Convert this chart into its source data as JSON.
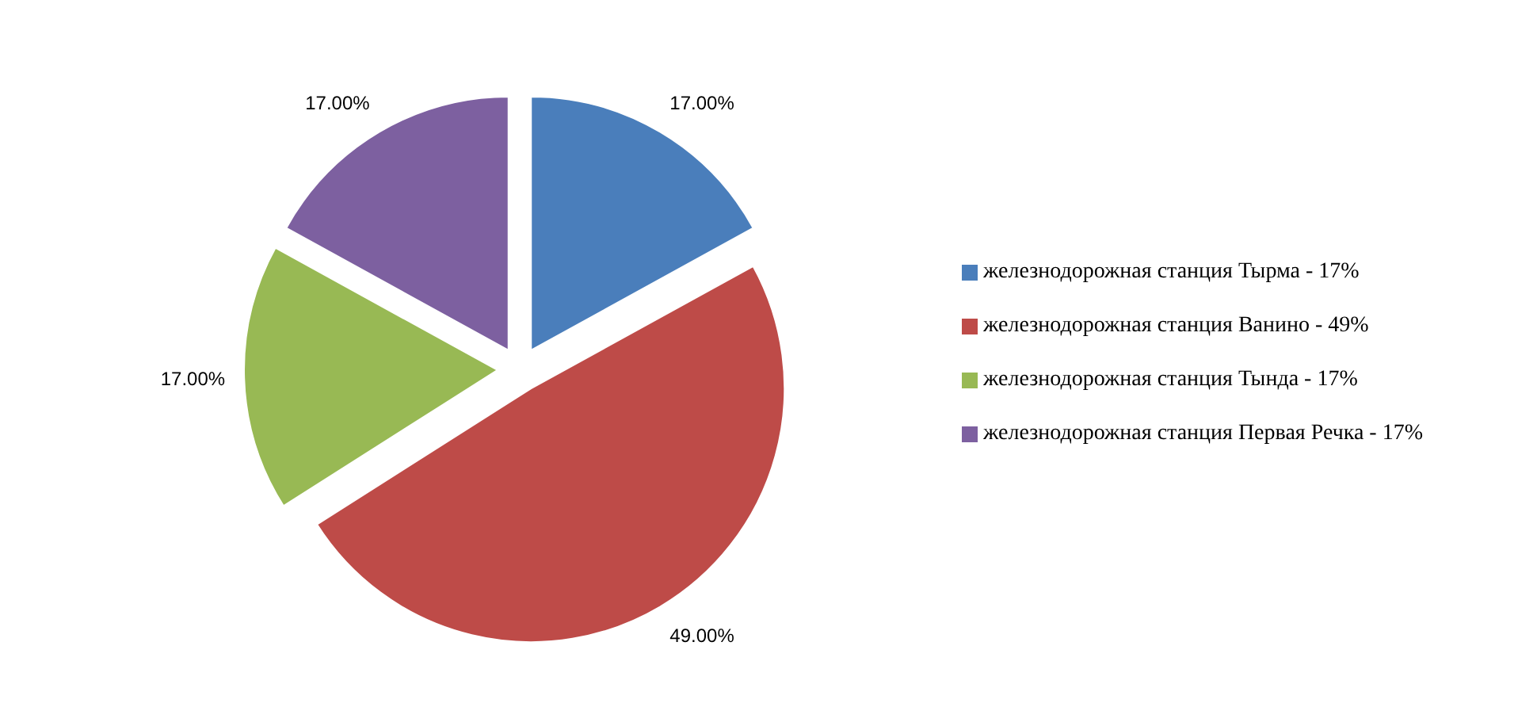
{
  "chart_data": {
    "type": "pie",
    "categories": [
      "железнодорожная станция Тырма - 17%",
      "железнодорожная станция Ванино - 49%",
      "железнодорожная станция Тында - 17%",
      "железнодорожная станция Первая Речка - 17%"
    ],
    "values": [
      17,
      49,
      17,
      17
    ],
    "colors": [
      "#4a7ebb",
      "#be4b48",
      "#98b954",
      "#7d60a0"
    ],
    "value_labels": [
      "17.00%",
      "49.00%",
      "17.00%",
      "17.00%"
    ],
    "legend": "right"
  }
}
